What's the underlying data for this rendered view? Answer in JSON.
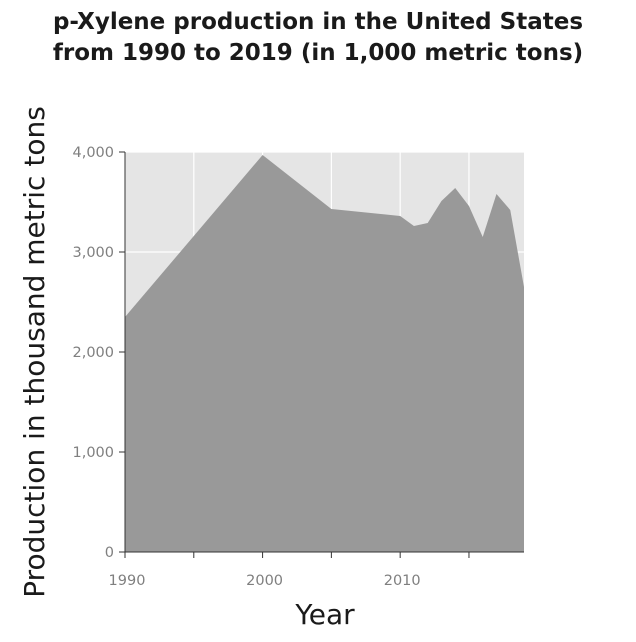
{
  "chart_data": {
    "type": "area",
    "title_lines": [
      "p-Xylene production in the United States",
      "from 1990 to 2019 (in 1,000 metric tons)"
    ],
    "xlabel": "Year",
    "ylabel": "Production in thousand metric tons",
    "xlim": [
      1990,
      2019
    ],
    "ylim": [
      0,
      4000
    ],
    "x_ticks": [
      1990,
      1995,
      2000,
      2005,
      2010,
      2015
    ],
    "x_tick_labels": [
      "1990",
      "",
      "2000",
      "",
      "2010",
      ""
    ],
    "y_ticks": [
      0,
      1000,
      2000,
      3000,
      4000
    ],
    "y_tick_labels": [
      "0",
      "1,000",
      "2,000",
      "3,000",
      "4,000"
    ],
    "grid": true,
    "colors": {
      "panel": "#e5e5e5",
      "fill": "#999999",
      "grid": "#ffffff",
      "axis": "#333333"
    },
    "x": [
      1990,
      2000,
      2005,
      2010,
      2011,
      2012,
      2013,
      2014,
      2015,
      2016,
      2017,
      2018,
      2019
    ],
    "values": [
      2350,
      3970,
      3430,
      3360,
      3260,
      3290,
      3510,
      3640,
      3460,
      3150,
      3580,
      3420,
      2650
    ]
  }
}
